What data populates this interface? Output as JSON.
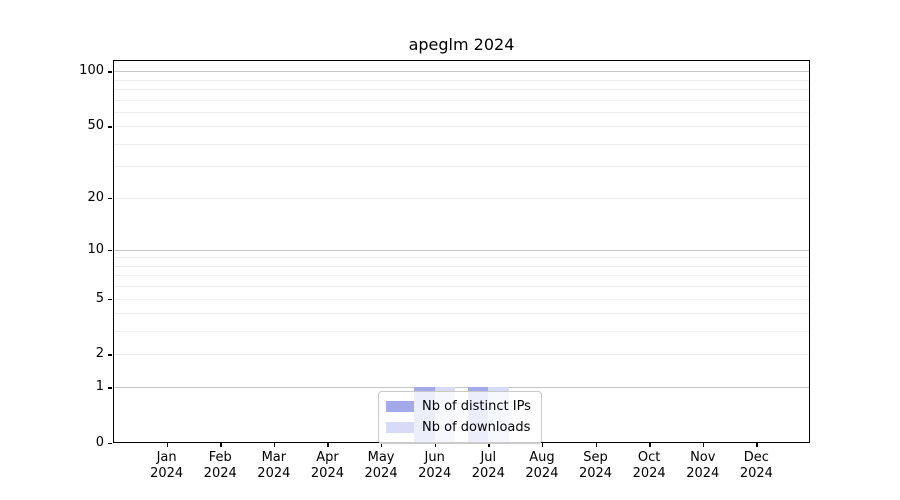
{
  "chart_data": {
    "type": "bar",
    "title": "apeglm 2024",
    "months": [
      "Jan",
      "Feb",
      "Mar",
      "Apr",
      "May",
      "Jun",
      "Jul",
      "Aug",
      "Sep",
      "Oct",
      "Nov",
      "Dec"
    ],
    "year": "2024",
    "series": [
      {
        "name": "Nb of distinct IPs",
        "color": "#a2aaea",
        "values": [
          0,
          0,
          0,
          0,
          0,
          1,
          1,
          0,
          0,
          0,
          0,
          0
        ]
      },
      {
        "name": "Nb of downloads",
        "color": "#d7dbf7",
        "values": [
          0,
          0,
          0,
          0,
          0,
          1,
          1,
          0,
          0,
          0,
          0,
          0
        ]
      }
    ],
    "y_axis": {
      "scale": "log1p",
      "tick_labels": [
        "0",
        "1",
        "2",
        "5",
        "10",
        "20",
        "50",
        "100"
      ],
      "tick_values": [
        0,
        1,
        2,
        5,
        10,
        20,
        50,
        100
      ],
      "major_gridlines": [
        1,
        10,
        100
      ],
      "minor_gridlines": [
        2,
        3,
        4,
        5,
        6,
        7,
        8,
        9,
        20,
        30,
        40,
        50,
        60,
        70,
        80,
        90
      ],
      "ylim": [
        0,
        115
      ]
    },
    "legend": {
      "position": "bottom-center",
      "items": [
        "Nb of distinct IPs",
        "Nb of downloads"
      ]
    },
    "colors": {
      "major_grid": "#c6c6c6",
      "minor_grid": "#ececec",
      "spine": "#000000",
      "background": "#ffffff"
    },
    "grid": true
  }
}
